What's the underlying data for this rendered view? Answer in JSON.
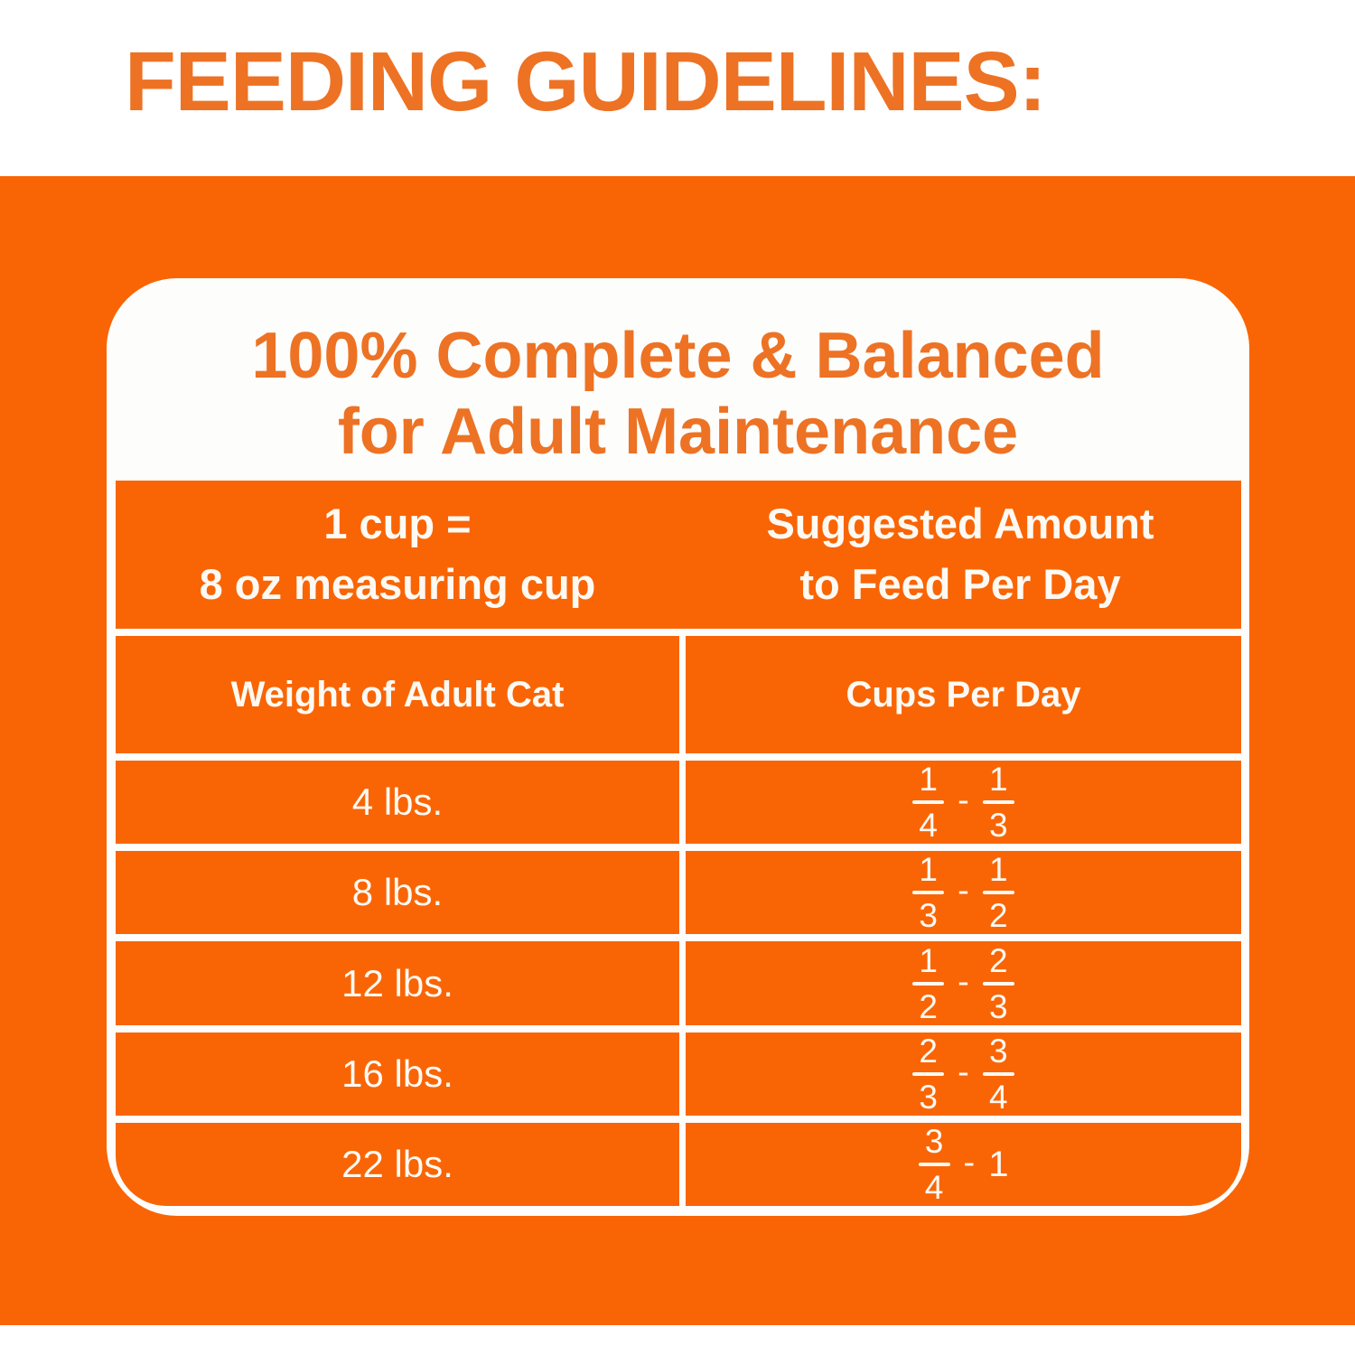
{
  "page": {
    "title": "FEEDING GUIDELINES:"
  },
  "card": {
    "heading_line1": "100% Complete & Balanced",
    "heading_line2": "for Adult Maintenance",
    "table": {
      "header_left_line1": "1 cup =",
      "header_left_line2": "8 oz measuring cup",
      "header_right_line1": "Suggested Amount",
      "header_right_line2": "to Feed Per Day",
      "col_left": "Weight of Adult Cat",
      "col_right": "Cups Per Day",
      "separator": "-",
      "rows": [
        {
          "weight": "4 lbs.",
          "from": {
            "num": "1",
            "den": "4"
          },
          "to": {
            "num": "1",
            "den": "3"
          }
        },
        {
          "weight": "8 lbs.",
          "from": {
            "num": "1",
            "den": "3"
          },
          "to": {
            "num": "1",
            "den": "2"
          }
        },
        {
          "weight": "12 lbs.",
          "from": {
            "num": "1",
            "den": "2"
          },
          "to": {
            "num": "2",
            "den": "3"
          }
        },
        {
          "weight": "16 lbs.",
          "from": {
            "num": "2",
            "den": "3"
          },
          "to": {
            "num": "3",
            "den": "4"
          }
        },
        {
          "weight": "22 lbs.",
          "from": {
            "num": "3",
            "den": "4"
          },
          "to": {
            "whole": "1"
          }
        }
      ]
    }
  },
  "colors": {
    "orange_background": "#F96505",
    "orange_text": "#ED7224",
    "card_white": "#FDFDFC",
    "text_white": "#FDF9F3"
  }
}
